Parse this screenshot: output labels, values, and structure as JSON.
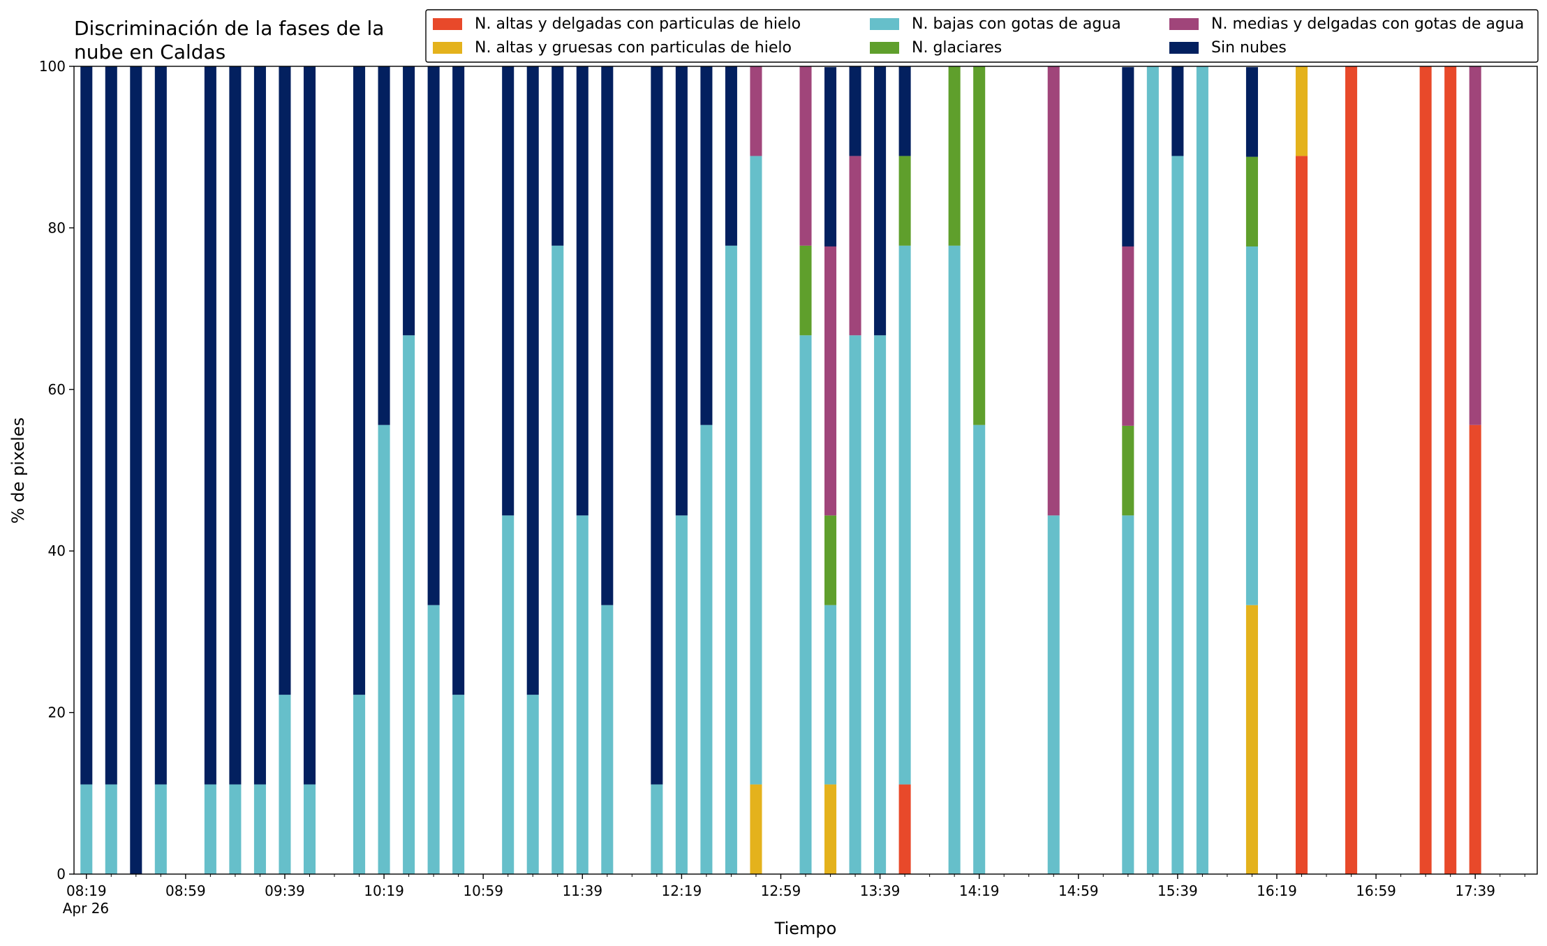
{
  "chart_data": {
    "type": "stacked_bar",
    "title": [
      "Discriminación de la fases de la",
      "nube en Caldas"
    ],
    "xlabel": "Tiempo",
    "ylabel": "% de pixeles",
    "x_date": "Apr 26",
    "x": [
      "08:19",
      "08:29",
      "08:39",
      "08:49",
      "09:09",
      "09:19",
      "09:29",
      "09:39",
      "09:49",
      "10:09",
      "10:19",
      "10:29",
      "10:39",
      "10:49",
      "11:09",
      "11:19",
      "11:29",
      "11:39",
      "11:49",
      "12:09",
      "12:19",
      "12:29",
      "12:39",
      "12:49",
      "13:09",
      "13:19",
      "13:29",
      "13:39",
      "13:49",
      "14:09",
      "14:19",
      "14:49",
      "15:19",
      "15:29",
      "15:39",
      "15:49",
      "16:09",
      "16:29",
      "16:49",
      "17:19",
      "17:29",
      "17:39"
    ],
    "xlim": [
      "08:14",
      "18:04"
    ],
    "xticks": [
      "08:19",
      "08:59",
      "09:39",
      "10:19",
      "10:59",
      "11:39",
      "12:19",
      "12:59",
      "13:39",
      "14:19",
      "14:59",
      "15:39",
      "16:19",
      "16:59",
      "17:39"
    ],
    "ylim": [
      0,
      100
    ],
    "yticks": [
      0,
      20,
      40,
      60,
      80,
      100
    ],
    "legend": "top-right",
    "series": [
      {
        "name": "N. altas y delgadas con particulas de hielo",
        "color": "#e8492a",
        "values": [
          0,
          0,
          0,
          0,
          0,
          0,
          0,
          0,
          0,
          0,
          0,
          0,
          0,
          0,
          0,
          0,
          0,
          0,
          0,
          0,
          0,
          0,
          0,
          0,
          0,
          0,
          0,
          0,
          11.1,
          0,
          0,
          0,
          0,
          0,
          0,
          0,
          0,
          88.9,
          100,
          100,
          100,
          55.6
        ]
      },
      {
        "name": "N. altas y gruesas con particulas de hielo",
        "color": "#e4b21c",
        "values": [
          0,
          0,
          0,
          0,
          0,
          0,
          0,
          0,
          0,
          0,
          0,
          0,
          0,
          0,
          0,
          0,
          0,
          0,
          0,
          0,
          0,
          0,
          0,
          11.1,
          0,
          11.1,
          0,
          0,
          0,
          0,
          0,
          0,
          0,
          0,
          0,
          0,
          33.3,
          11.1,
          0,
          0,
          0,
          0
        ]
      },
      {
        "name": "N. bajas con gotas de agua",
        "color": "#66bfca",
        "values": [
          11.1,
          11.1,
          0,
          11.1,
          11.1,
          11.1,
          11.1,
          22.2,
          11.1,
          22.2,
          55.6,
          66.7,
          33.3,
          22.2,
          44.4,
          22.2,
          77.8,
          44.4,
          33.3,
          11.1,
          44.4,
          55.6,
          77.8,
          77.8,
          66.7,
          22.2,
          66.7,
          66.7,
          66.7,
          77.8,
          55.6,
          44.4,
          44.4,
          100,
          88.9,
          100,
          44.4,
          0,
          0,
          0,
          0,
          0
        ]
      },
      {
        "name": "N. glaciares",
        "color": "#5f9f2c",
        "values": [
          0,
          0,
          0,
          0,
          0,
          0,
          0,
          0,
          0,
          0,
          0,
          0,
          0,
          0,
          0,
          0,
          0,
          0,
          0,
          0,
          0,
          0,
          0,
          0,
          11.1,
          11.1,
          0,
          0,
          11.1,
          22.2,
          44.4,
          0,
          11.1,
          0,
          0,
          0,
          11.1,
          0,
          0,
          0,
          0,
          0
        ]
      },
      {
        "name": "N. medias y delgadas con gotas de agua",
        "color": "#a0457a",
        "values": [
          0,
          0,
          0,
          0,
          0,
          0,
          0,
          0,
          0,
          0,
          0,
          0,
          0,
          0,
          0,
          0,
          0,
          0,
          0,
          0,
          0,
          0,
          0,
          11.1,
          22.2,
          33.3,
          22.2,
          0,
          0,
          0,
          0,
          55.6,
          22.2,
          0,
          0,
          0,
          0,
          0,
          0,
          0,
          0,
          44.4
        ]
      },
      {
        "name": "Sin nubes",
        "color": "#03205f",
        "values": [
          88.9,
          88.9,
          100,
          88.9,
          88.9,
          88.9,
          88.9,
          77.8,
          88.9,
          77.8,
          44.4,
          33.3,
          66.7,
          77.8,
          55.6,
          77.8,
          22.2,
          55.6,
          66.7,
          88.9,
          55.6,
          44.4,
          22.2,
          0,
          0,
          22.2,
          11.1,
          33.3,
          11.1,
          0,
          0,
          0,
          22.2,
          0,
          11.1,
          0,
          11.1,
          0,
          0,
          0,
          0,
          0
        ]
      }
    ]
  }
}
